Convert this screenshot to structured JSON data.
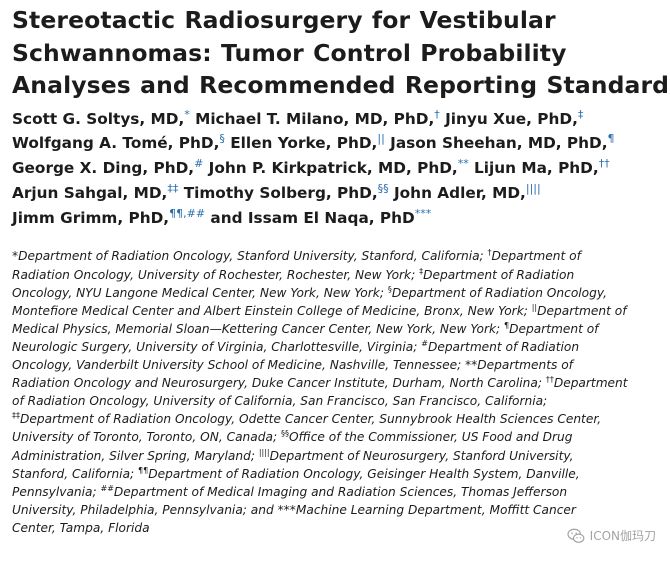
{
  "title_lines": [
    "Stereotactic Radiosurgery for Vestibular",
    "Schwannomas: Tumor Control Probability",
    "Analyses and Recommended Reporting Standards"
  ],
  "authors": [
    {
      "name": "Scott G. Soltys, MD,",
      "mark": "*"
    },
    {
      "name": "Michael T. Milano, MD, PhD,",
      "mark": "†"
    },
    {
      "name": "Jinyu Xue, PhD,",
      "mark": "‡"
    },
    {
      "name": "Wolfgang A. Tomé, PhD,",
      "mark": "§"
    },
    {
      "name": "Ellen Yorke, PhD,",
      "mark": "||"
    },
    {
      "name": "Jason Sheehan, MD, PhD,",
      "mark": "¶"
    },
    {
      "name": "George X. Ding, PhD,",
      "mark": "#"
    },
    {
      "name": "John P. Kirkpatrick, MD, PhD,",
      "mark": "**"
    },
    {
      "name": "Lijun Ma, PhD,",
      "mark": "††"
    },
    {
      "name": "Arjun Sahgal, MD,",
      "mark": "‡‡"
    },
    {
      "name": "Timothy Solberg, PhD,",
      "mark": "§§"
    },
    {
      "name": "John Adler, MD,",
      "mark": "||||"
    },
    {
      "name": "Jimm Grimm, PhD,",
      "mark": "¶¶,##"
    },
    {
      "name": "and Issam El Naqa, PhD",
      "mark": "***"
    }
  ],
  "affiliation_lines": [
    {
      "parts": [
        {
          "t": "*Department of Radiation Oncology, Stanford University, Stanford, California; "
        },
        {
          "s": "†"
        },
        {
          "t": "Department of"
        }
      ]
    },
    {
      "parts": [
        {
          "t": "Radiation Oncology, University of Rochester, Rochester, New York; "
        },
        {
          "s": "‡"
        },
        {
          "t": "Department of Radiation"
        }
      ]
    },
    {
      "parts": [
        {
          "t": "Oncology, NYU Langone Medical Center, New York, New York; "
        },
        {
          "s": "§"
        },
        {
          "t": "Department of Radiation Oncology,"
        }
      ]
    },
    {
      "parts": [
        {
          "t": "Montefiore Medical Center and Albert Einstein College of Medicine, Bronx, New York; "
        },
        {
          "s": "||"
        },
        {
          "t": "Department of"
        }
      ]
    },
    {
      "parts": [
        {
          "t": "Medical Physics, Memorial Sloan—Kettering Cancer Center, New York, New York; "
        },
        {
          "s": "¶"
        },
        {
          "t": "Department of"
        }
      ]
    },
    {
      "parts": [
        {
          "t": "Neurologic Surgery, University of Virginia, Charlottesville, Virginia; "
        },
        {
          "s": "#"
        },
        {
          "t": "Department of Radiation"
        }
      ]
    },
    {
      "parts": [
        {
          "t": "Oncology, Vanderbilt University School of Medicine, Nashville, Tennessee; **Departments of"
        }
      ]
    },
    {
      "parts": [
        {
          "t": "Radiation Oncology and Neurosurgery, Duke Cancer Institute, Durham, North Carolina; "
        },
        {
          "s": "††"
        },
        {
          "t": "Department"
        }
      ]
    },
    {
      "parts": [
        {
          "t": "of Radiation Oncology, University of California, San Francisco, San Francisco, California;"
        }
      ]
    },
    {
      "parts": [
        {
          "s": "‡‡"
        },
        {
          "t": "Department of Radiation Oncology, Odette Cancer Center, Sunnybrook Health Sciences Center,"
        }
      ]
    },
    {
      "parts": [
        {
          "t": "University of Toronto, Toronto, ON, Canada; "
        },
        {
          "s": "§§"
        },
        {
          "t": "Office of the Commissioner, US Food and Drug"
        }
      ]
    },
    {
      "parts": [
        {
          "t": "Administration, Silver Spring, Maryland; "
        },
        {
          "s": "||||"
        },
        {
          "t": "Department of Neurosurgery, Stanford University,"
        }
      ]
    },
    {
      "parts": [
        {
          "t": "Stanford, California; "
        },
        {
          "s": "¶¶"
        },
        {
          "t": "Department of Radiation Oncology, Geisinger Health System, Danville,"
        }
      ]
    },
    {
      "parts": [
        {
          "t": "Pennsylvania; "
        },
        {
          "s": "##"
        },
        {
          "t": "Department of Medical Imaging and Radiation Sciences, Thomas Jefferson"
        }
      ]
    },
    {
      "parts": [
        {
          "t": "University, Philadelphia, Pennsylvania; and ***Machine Learning Department, Moffitt Cancer"
        }
      ]
    },
    {
      "parts": [
        {
          "t": "Center, Tampa, Florida"
        }
      ]
    }
  ],
  "watermark": {
    "text": "ICON伽玛刀",
    "icon": "wechat-icon"
  },
  "colors": {
    "author_mark": "#2a6fb0",
    "text": "#1c1c1c",
    "watermark": "#9a9a9a"
  }
}
